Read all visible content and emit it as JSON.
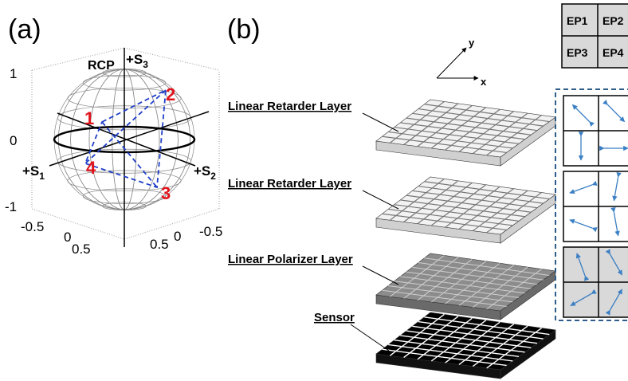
{
  "panel_a": {
    "label": "(a)",
    "rcp": "RCP",
    "axes": {
      "s3": {
        "text": "+S",
        "sub": "3"
      },
      "s1": {
        "text": "+S",
        "sub": "1"
      },
      "s2": {
        "text": "+S",
        "sub": "2"
      }
    },
    "z_ticks": [
      "1",
      "0",
      "-1"
    ],
    "x_ticks": [
      "-0.5",
      "0",
      "0.5"
    ],
    "y_ticks": [
      "0.5",
      "0",
      "-0.5"
    ],
    "points": [
      "1",
      "2",
      "3",
      "4"
    ]
  },
  "panel_b": {
    "label": "(b)",
    "axes": {
      "x": "x",
      "y": "y"
    },
    "layers": [
      "Linear Retarder Layer",
      "Linear Retarder Layer",
      "Linear Polarizer Layer",
      "Sensor"
    ],
    "pixels": [
      "EP1",
      "EP2",
      "EP3",
      "EP4"
    ]
  }
}
